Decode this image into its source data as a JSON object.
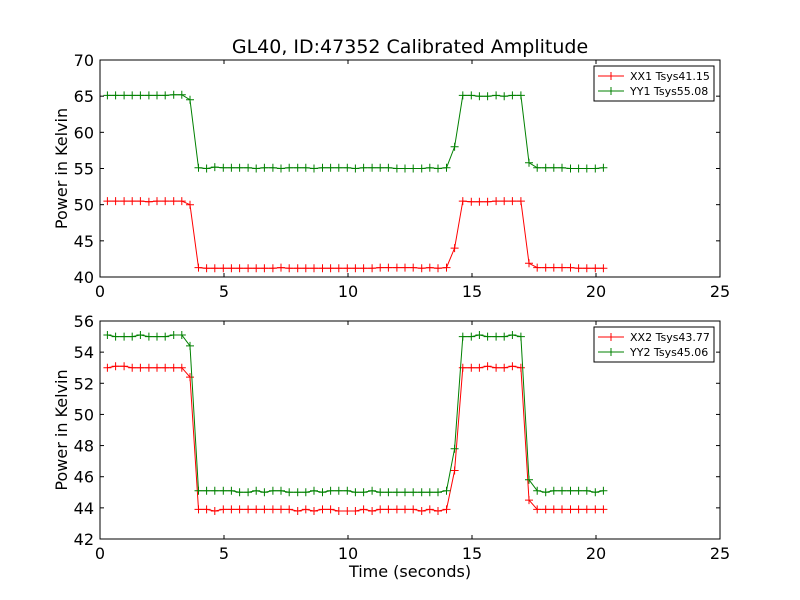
{
  "chart_data": {
    "title": "GL40, ID:47352 Calibrated Amplitude",
    "xlabel": "Time (seconds)",
    "panels": [
      {
        "type": "line",
        "ylabel": "Power in Kelvin",
        "xlim": [
          0,
          25
        ],
        "ylim": [
          40,
          70
        ],
        "xticks": [
          0,
          5,
          10,
          15,
          20,
          25
        ],
        "yticks": [
          40,
          45,
          50,
          55,
          60,
          65,
          70
        ],
        "legend_position": "top-right",
        "series": [
          {
            "name": "XX1 Tsys41.15",
            "color": "#ff0000",
            "x": [
              0.3,
              0.63,
              0.97,
              1.3,
              1.63,
              1.97,
              2.3,
              2.63,
              2.97,
              3.3,
              3.63,
              3.97,
              4.3,
              4.63,
              4.97,
              5.3,
              5.63,
              5.97,
              6.3,
              6.63,
              6.97,
              7.3,
              7.63,
              7.97,
              8.3,
              8.63,
              8.97,
              9.3,
              9.63,
              9.97,
              10.3,
              10.63,
              10.97,
              11.3,
              11.63,
              11.97,
              12.3,
              12.63,
              12.97,
              13.3,
              13.63,
              13.97,
              14.3,
              14.63,
              14.97,
              15.3,
              15.63,
              15.97,
              16.3,
              16.63,
              16.97,
              17.3,
              17.63,
              17.97,
              18.3,
              18.63,
              18.97,
              19.3,
              19.63,
              19.97,
              20.3
            ],
            "y": [
              50.5,
              50.5,
              50.5,
              50.5,
              50.5,
              50.4,
              50.5,
              50.5,
              50.5,
              50.5,
              50.0,
              41.3,
              41.2,
              41.2,
              41.2,
              41.2,
              41.2,
              41.2,
              41.2,
              41.2,
              41.2,
              41.3,
              41.2,
              41.2,
              41.2,
              41.2,
              41.2,
              41.2,
              41.2,
              41.2,
              41.2,
              41.2,
              41.2,
              41.3,
              41.3,
              41.3,
              41.3,
              41.3,
              41.2,
              41.3,
              41.2,
              41.3,
              44.0,
              50.5,
              50.4,
              50.4,
              50.4,
              50.5,
              50.5,
              50.5,
              50.5,
              41.9,
              41.3,
              41.3,
              41.3,
              41.3,
              41.3,
              41.2,
              41.2,
              41.2,
              41.2
            ]
          },
          {
            "name": "YY1 Tsys55.08",
            "color": "#008000",
            "x": [
              0.3,
              0.63,
              0.97,
              1.3,
              1.63,
              1.97,
              2.3,
              2.63,
              2.97,
              3.3,
              3.63,
              3.97,
              4.3,
              4.63,
              4.97,
              5.3,
              5.63,
              5.97,
              6.3,
              6.63,
              6.97,
              7.3,
              7.63,
              7.97,
              8.3,
              8.63,
              8.97,
              9.3,
              9.63,
              9.97,
              10.3,
              10.63,
              10.97,
              11.3,
              11.63,
              11.97,
              12.3,
              12.63,
              12.97,
              13.3,
              13.63,
              13.97,
              14.3,
              14.63,
              14.97,
              15.3,
              15.63,
              15.97,
              16.3,
              16.63,
              16.97,
              17.3,
              17.63,
              17.97,
              18.3,
              18.63,
              18.97,
              19.3,
              19.63,
              19.97,
              20.3
            ],
            "y": [
              65.1,
              65.1,
              65.1,
              65.1,
              65.1,
              65.1,
              65.1,
              65.1,
              65.2,
              65.2,
              64.5,
              55.1,
              55.0,
              55.2,
              55.1,
              55.1,
              55.1,
              55.1,
              55.0,
              55.1,
              55.1,
              55.0,
              55.1,
              55.1,
              55.1,
              55.0,
              55.1,
              55.1,
              55.1,
              55.1,
              55.0,
              55.1,
              55.1,
              55.1,
              55.1,
              55.0,
              55.0,
              55.0,
              55.0,
              55.1,
              55.0,
              55.1,
              58.0,
              65.1,
              65.1,
              65.0,
              65.0,
              65.1,
              65.0,
              65.1,
              65.1,
              55.8,
              55.1,
              55.1,
              55.1,
              55.1,
              55.0,
              55.0,
              55.0,
              55.0,
              55.1
            ]
          }
        ]
      },
      {
        "type": "line",
        "ylabel": "Power in Kelvin",
        "xlim": [
          0,
          25
        ],
        "ylim": [
          42,
          56
        ],
        "xticks": [
          0,
          5,
          10,
          15,
          20,
          25
        ],
        "yticks": [
          42,
          44,
          46,
          48,
          50,
          52,
          54,
          56
        ],
        "legend_position": "top-right",
        "series": [
          {
            "name": "XX2 Tsys43.77",
            "color": "#ff0000",
            "x": [
              0.3,
              0.63,
              0.97,
              1.3,
              1.63,
              1.97,
              2.3,
              2.63,
              2.97,
              3.3,
              3.63,
              3.97,
              4.3,
              4.63,
              4.97,
              5.3,
              5.63,
              5.97,
              6.3,
              6.63,
              6.97,
              7.3,
              7.63,
              7.97,
              8.3,
              8.63,
              8.97,
              9.3,
              9.63,
              9.97,
              10.3,
              10.63,
              10.97,
              11.3,
              11.63,
              11.97,
              12.3,
              12.63,
              12.97,
              13.3,
              13.63,
              13.97,
              14.3,
              14.63,
              14.97,
              15.3,
              15.63,
              15.97,
              16.3,
              16.63,
              16.97,
              17.3,
              17.63,
              17.97,
              18.3,
              18.63,
              18.97,
              19.3,
              19.63,
              19.97,
              20.3
            ],
            "y": [
              53.0,
              53.1,
              53.1,
              53.0,
              53.0,
              53.0,
              53.0,
              53.0,
              53.0,
              53.0,
              52.4,
              43.9,
              43.9,
              43.8,
              43.9,
              43.9,
              43.9,
              43.9,
              43.9,
              43.9,
              43.9,
              43.9,
              43.9,
              43.8,
              43.9,
              43.8,
              43.9,
              43.9,
              43.8,
              43.8,
              43.8,
              43.9,
              43.8,
              43.9,
              43.9,
              43.9,
              43.9,
              43.9,
              43.8,
              43.9,
              43.8,
              43.9,
              46.4,
              53.0,
              53.0,
              53.0,
              53.1,
              53.0,
              53.0,
              53.1,
              53.0,
              44.5,
              43.9,
              43.9,
              43.9,
              43.9,
              43.9,
              43.9,
              43.9,
              43.9,
              43.9
            ]
          },
          {
            "name": "YY2 Tsys45.06",
            "color": "#008000",
            "x": [
              0.3,
              0.63,
              0.97,
              1.3,
              1.63,
              1.97,
              2.3,
              2.63,
              2.97,
              3.3,
              3.63,
              3.97,
              4.3,
              4.63,
              4.97,
              5.3,
              5.63,
              5.97,
              6.3,
              6.63,
              6.97,
              7.3,
              7.63,
              7.97,
              8.3,
              8.63,
              8.97,
              9.3,
              9.63,
              9.97,
              10.3,
              10.63,
              10.97,
              11.3,
              11.63,
              11.97,
              12.3,
              12.63,
              12.97,
              13.3,
              13.63,
              13.97,
              14.3,
              14.63,
              14.97,
              15.3,
              15.63,
              15.97,
              16.3,
              16.63,
              16.97,
              17.3,
              17.63,
              17.97,
              18.3,
              18.63,
              18.97,
              19.3,
              19.63,
              19.97,
              20.3
            ],
            "y": [
              55.1,
              55.0,
              55.0,
              55.0,
              55.1,
              55.0,
              55.0,
              55.0,
              55.1,
              55.1,
              54.4,
              45.1,
              45.1,
              45.1,
              45.1,
              45.1,
              45.0,
              45.0,
              45.1,
              45.0,
              45.1,
              45.1,
              45.0,
              45.0,
              45.0,
              45.1,
              45.0,
              45.1,
              45.1,
              45.1,
              45.0,
              45.0,
              45.1,
              45.0,
              45.0,
              45.0,
              45.0,
              45.0,
              45.0,
              45.0,
              45.0,
              45.1,
              47.8,
              55.0,
              55.0,
              55.1,
              55.0,
              55.0,
              55.0,
              55.1,
              55.0,
              45.8,
              45.1,
              45.0,
              45.1,
              45.1,
              45.1,
              45.1,
              45.1,
              45.0,
              45.1
            ]
          }
        ]
      }
    ]
  }
}
